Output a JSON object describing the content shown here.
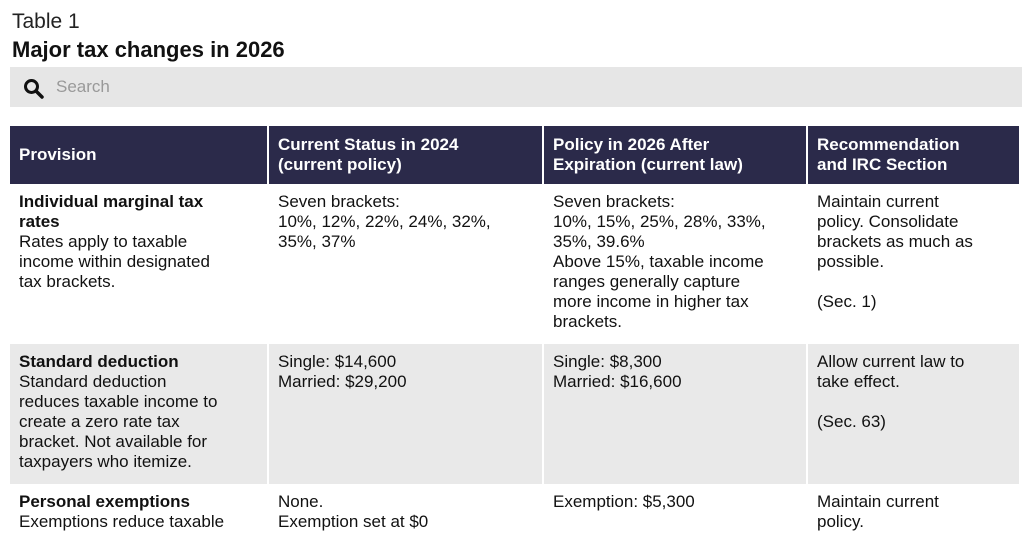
{
  "header": {
    "label": "Table 1",
    "title": "Major tax changes in 2026"
  },
  "search": {
    "placeholder": "Search"
  },
  "table": {
    "columns": [
      [
        "Provision"
      ],
      [
        "Current Status in 2024",
        "(current policy)"
      ],
      [
        "Policy in 2026 After",
        "Expiration (current law)"
      ],
      [
        "Recommendation",
        "and IRC Section"
      ]
    ],
    "rows": [
      {
        "provision": {
          "name_lines": [
            "Individual marginal tax",
            "rates"
          ],
          "description_lines": [
            "Rates apply to taxable",
            "income within designated",
            "tax brackets."
          ]
        },
        "current": [
          "Seven brackets:",
          "10%, 12%, 22%, 24%, 32%,",
          "35%, 37%"
        ],
        "policy": [
          "Seven brackets:",
          "10%, 15%, 25%, 28%, 33%,",
          "35%, 39.6%",
          "Above 15%, taxable income",
          "ranges generally capture",
          "more income in higher tax",
          "brackets."
        ],
        "recommendation": {
          "text": [
            "Maintain current",
            "policy. Consolidate",
            "brackets as much as",
            "possible."
          ],
          "section": "(Sec. 1)"
        }
      },
      {
        "provision": {
          "name_lines": [
            "Standard deduction"
          ],
          "description_lines": [
            "Standard deduction",
            "reduces taxable income to",
            "create a zero rate tax",
            "bracket. Not available for",
            "taxpayers who itemize."
          ]
        },
        "current": [
          "Single: $14,600",
          "Married: $29,200"
        ],
        "policy": [
          "Single: $8,300",
          "Married: $16,600"
        ],
        "recommendation": {
          "text": [
            "Allow current law to",
            "take effect."
          ],
          "section": "(Sec. 63)"
        }
      },
      {
        "provision": {
          "name_lines": [
            "Personal exemptions"
          ],
          "description_lines": [
            "Exemptions reduce taxable"
          ]
        },
        "current": [
          "None.",
          "Exemption set at $0"
        ],
        "policy": [
          "Exemption: $5,300"
        ],
        "recommendation": {
          "text": [
            "Maintain current",
            "policy."
          ]
        }
      }
    ]
  }
}
